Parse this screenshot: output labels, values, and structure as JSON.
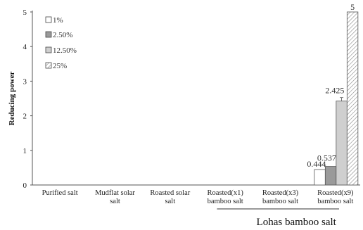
{
  "chart_data": {
    "type": "bar",
    "ylabel": "Reducing power",
    "xlabel": "",
    "ylim": [
      0,
      5
    ],
    "yticks": [
      "0",
      "1",
      "2",
      "3",
      "4",
      "5"
    ],
    "categories": [
      [
        "Purified salt"
      ],
      [
        "Mudflat solar",
        "salt"
      ],
      [
        "Roasted  solar",
        "salt"
      ],
      [
        "Roasted(x1)",
        "bamboo salt"
      ],
      [
        "Roasted(x3)",
        "bamboo salt"
      ],
      [
        "Roasted(x9)",
        "bamboo salt"
      ]
    ],
    "group_label": "Lohas bamboo salt",
    "legend_position": "top-left",
    "series": [
      {
        "name": "1%",
        "color": "#ffffff",
        "pattern": "none",
        "values": [
          null,
          null,
          null,
          null,
          null,
          0.444
        ],
        "labels": [
          null,
          null,
          null,
          null,
          null,
          "0.444"
        ]
      },
      {
        "name": "2.50%",
        "color": "#9a9a9a",
        "pattern": "none",
        "values": [
          null,
          null,
          null,
          null,
          null,
          0.537
        ],
        "labels": [
          null,
          null,
          null,
          null,
          null,
          "0.537"
        ]
      },
      {
        "name": "12.50%",
        "color": "#cfcfcf",
        "pattern": "none",
        "values": [
          null,
          null,
          null,
          null,
          null,
          2.425
        ],
        "labels": [
          null,
          null,
          null,
          null,
          null,
          "2.425"
        ]
      },
      {
        "name": "25%",
        "color": "#ffffff",
        "pattern": "hatch",
        "values": [
          null,
          null,
          null,
          null,
          null,
          5
        ],
        "labels": [
          null,
          null,
          null,
          null,
          null,
          "5"
        ]
      }
    ]
  }
}
